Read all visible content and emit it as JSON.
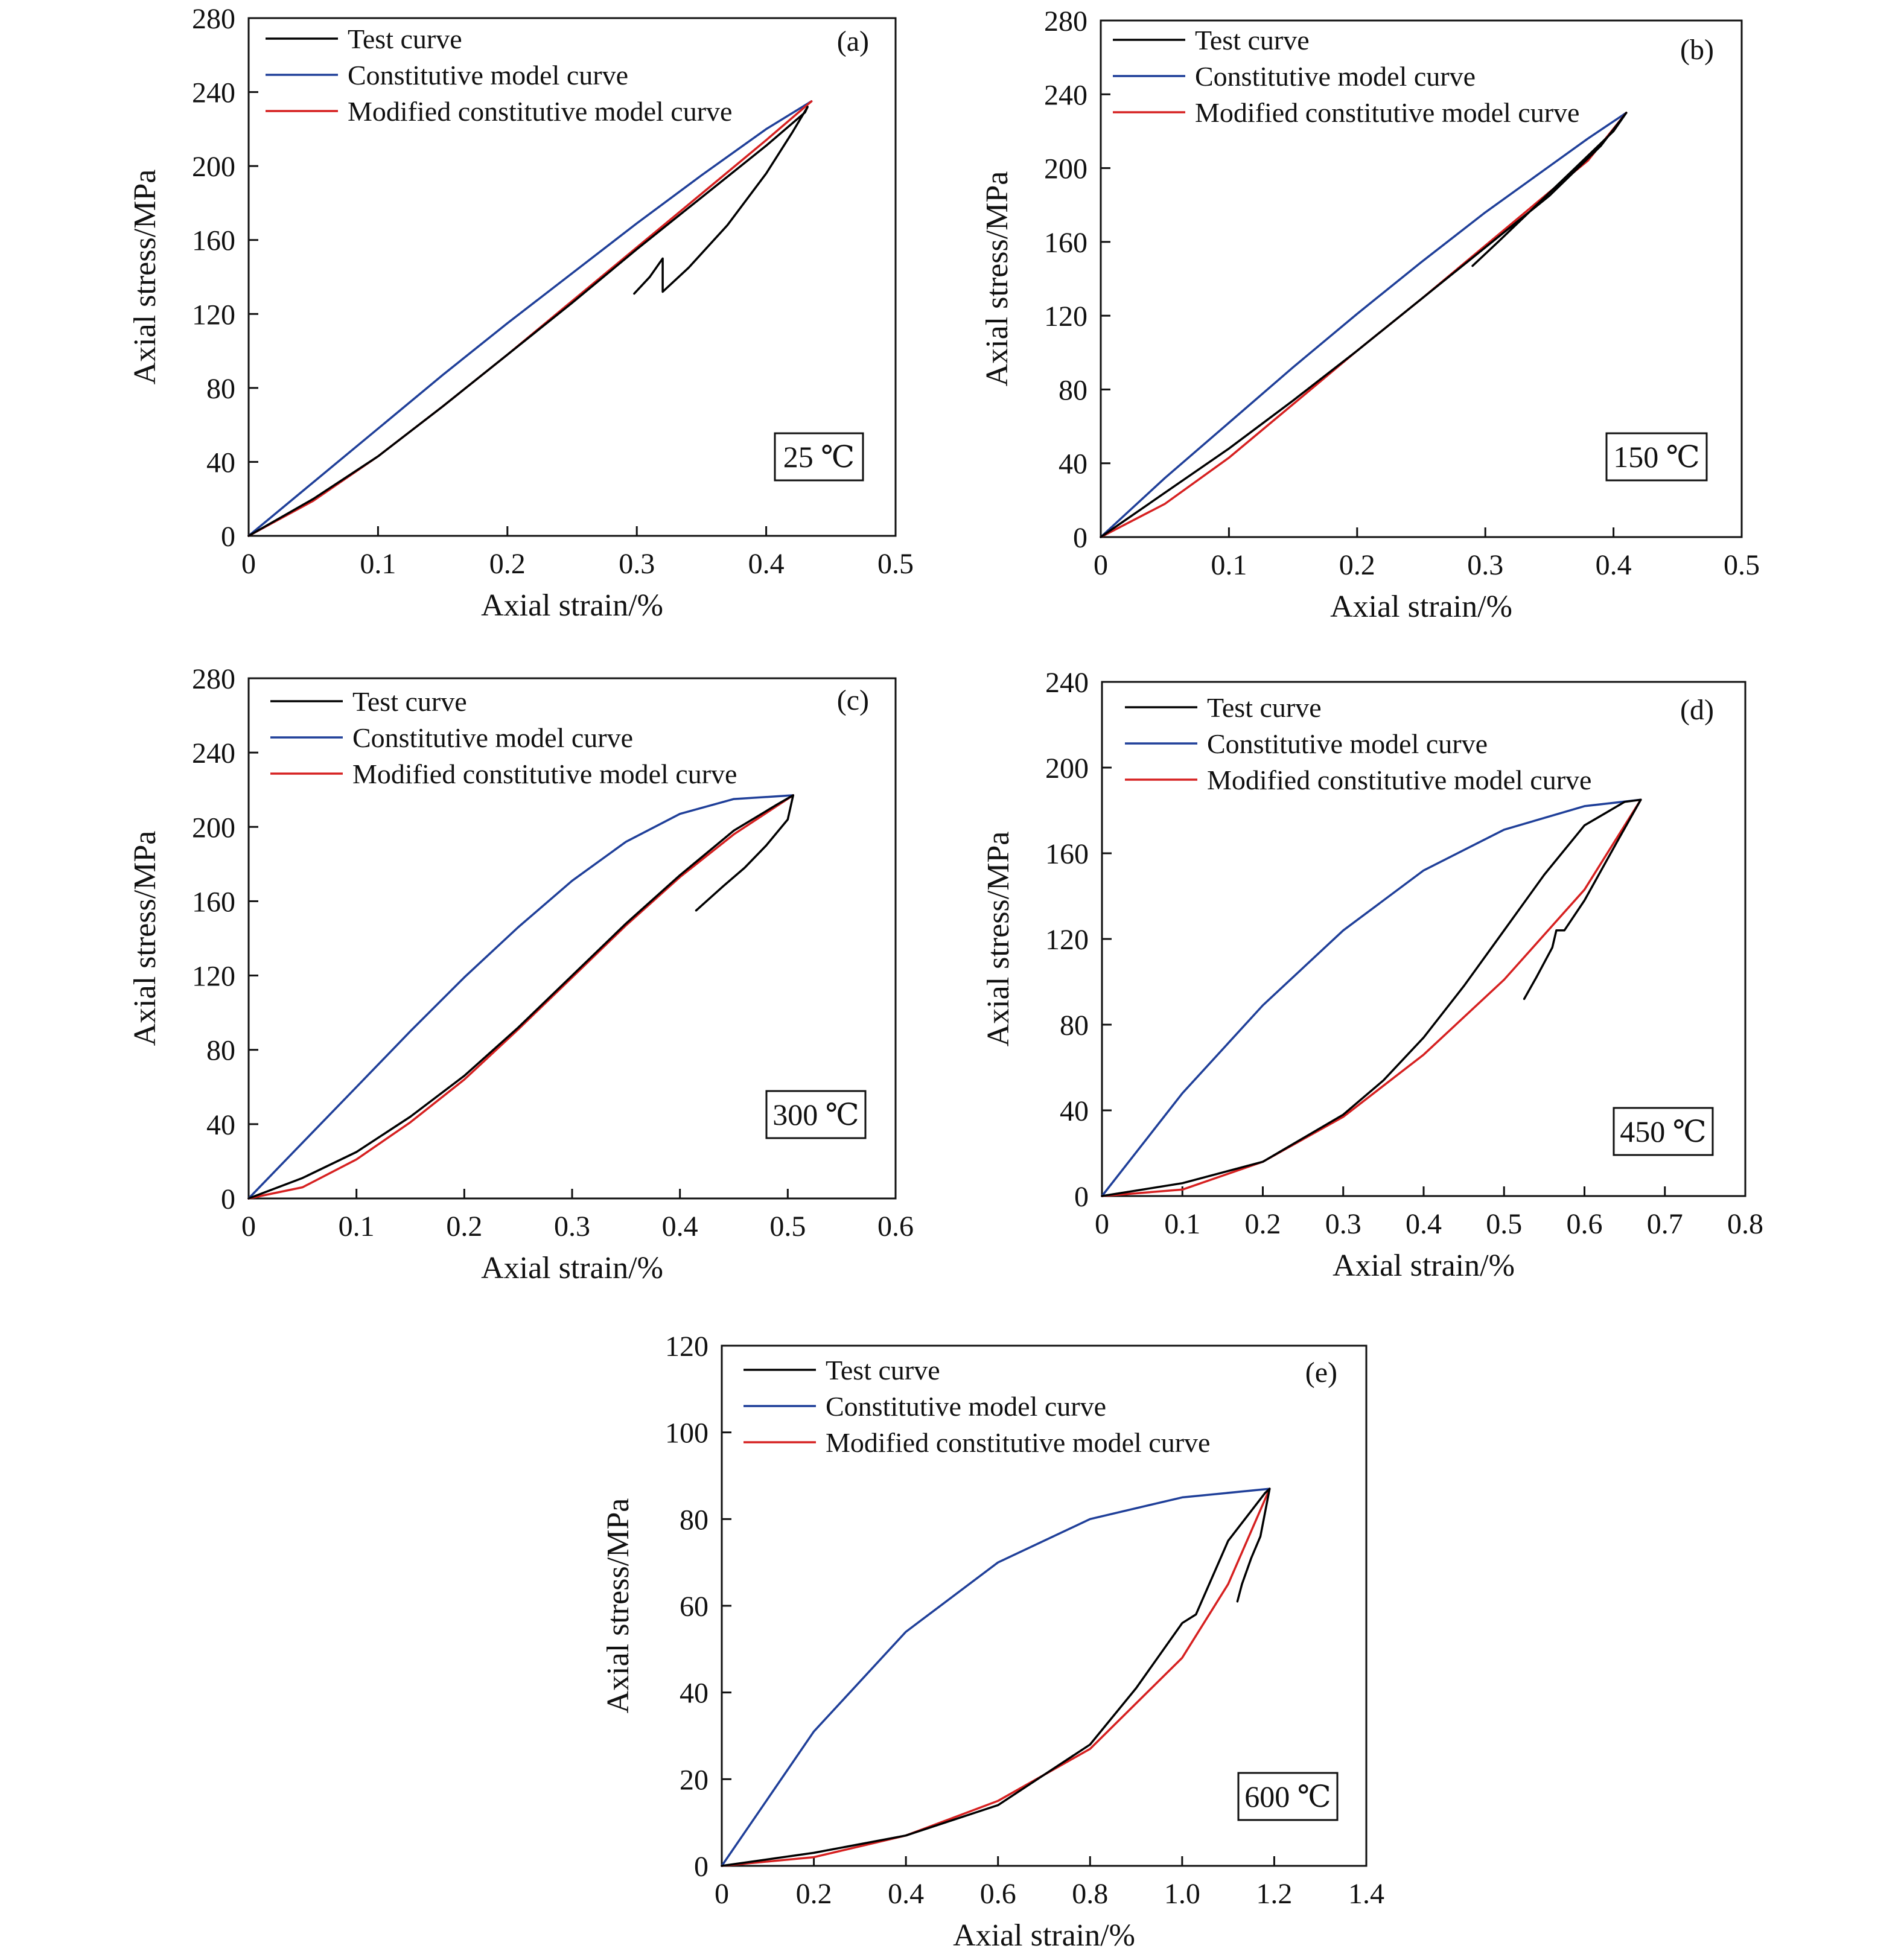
{
  "figure": {
    "colors": {
      "test": "#000000",
      "model": "#1f3f99",
      "modified": "#d62020"
    },
    "legend": [
      "Test curve",
      "Constitutive model curve",
      "Modified constitutive model curve"
    ]
  },
  "chart_data": [
    {
      "type": "line",
      "panel": "(a)",
      "temperature": "25 ℃",
      "xlabel": "Axial strain/%",
      "ylabel": "Axial stress/MPa",
      "xlim": [
        0,
        0.5
      ],
      "ylim": [
        0,
        280
      ],
      "xticks": [
        0,
        0.1,
        0.2,
        0.3,
        0.4,
        0.5
      ],
      "xtick_labels": [
        "0",
        "0.1",
        "0.2",
        "0.3",
        "0.4",
        "0.5"
      ],
      "yticks": [
        0,
        40,
        80,
        120,
        160,
        200,
        240,
        280
      ],
      "ytick_labels": [
        "0",
        "40",
        "80",
        "120",
        "160",
        "200",
        "240",
        "280"
      ],
      "series": [
        {
          "name": "Test curve",
          "color": "#000000",
          "x": [
            0,
            0.05,
            0.1,
            0.15,
            0.2,
            0.25,
            0.3,
            0.35,
            0.4,
            0.43,
            0.432,
            0.42,
            0.4,
            0.37,
            0.34,
            0.32,
            0.32,
            0.31,
            0.298
          ],
          "y": [
            0,
            20,
            43,
            70,
            98,
            126,
            155,
            183,
            211,
            229,
            232,
            218,
            196,
            168,
            145,
            132,
            150,
            140,
            131
          ]
        },
        {
          "name": "Constitutive model curve",
          "color": "#1f3f99",
          "x": [
            0,
            0.05,
            0.1,
            0.15,
            0.2,
            0.25,
            0.3,
            0.35,
            0.4,
            0.435
          ],
          "y": [
            0,
            29,
            58,
            87,
            115,
            142,
            169,
            195,
            220,
            235
          ]
        },
        {
          "name": "Modified constitutive model curve",
          "color": "#d62020",
          "x": [
            0,
            0.05,
            0.1,
            0.15,
            0.2,
            0.25,
            0.3,
            0.35,
            0.4,
            0.435
          ],
          "y": [
            0,
            19,
            43,
            70,
            98,
            127,
            156,
            185,
            214,
            235
          ]
        }
      ]
    },
    {
      "type": "line",
      "panel": "(b)",
      "temperature": "150 ℃",
      "xlabel": "Axial strain/%",
      "ylabel": "Axial stress/MPa",
      "xlim": [
        0,
        0.5
      ],
      "ylim": [
        0,
        280
      ],
      "xticks": [
        0,
        0.1,
        0.2,
        0.3,
        0.4,
        0.5
      ],
      "xtick_labels": [
        "0",
        "0.1",
        "0.2",
        "0.3",
        "0.4",
        "0.5"
      ],
      "yticks": [
        0,
        40,
        80,
        120,
        160,
        200,
        240,
        280
      ],
      "ytick_labels": [
        "0",
        "40",
        "80",
        "120",
        "160",
        "200",
        "240",
        "280"
      ],
      "series": [
        {
          "name": "Test curve",
          "color": "#000000",
          "x": [
            0,
            0.05,
            0.1,
            0.15,
            0.2,
            0.25,
            0.3,
            0.35,
            0.39,
            0.41,
            0.4,
            0.37,
            0.34,
            0.31,
            0.29
          ],
          "y": [
            0,
            24,
            48,
            74,
            101,
            129,
            157,
            185,
            212,
            230,
            220,
            200,
            180,
            160,
            147
          ]
        },
        {
          "name": "Constitutive model curve",
          "color": "#1f3f99",
          "x": [
            0,
            0.05,
            0.1,
            0.15,
            0.2,
            0.25,
            0.3,
            0.35,
            0.38,
            0.41
          ],
          "y": [
            0,
            32,
            62,
            92,
            121,
            149,
            176,
            201,
            216,
            230
          ]
        },
        {
          "name": "Modified constitutive model curve",
          "color": "#d62020",
          "x": [
            0,
            0.05,
            0.1,
            0.15,
            0.2,
            0.25,
            0.3,
            0.35,
            0.38,
            0.41
          ],
          "y": [
            0,
            18,
            43,
            72,
            101,
            129,
            158,
            187,
            204,
            230
          ]
        }
      ]
    },
    {
      "type": "line",
      "panel": "(c)",
      "temperature": "300 ℃",
      "xlabel": "Axial strain/%",
      "ylabel": "Axial stress/MPa",
      "xlim": [
        0,
        0.6
      ],
      "ylim": [
        0,
        280
      ],
      "xticks": [
        0,
        0.1,
        0.2,
        0.3,
        0.4,
        0.5,
        0.6
      ],
      "xtick_labels": [
        "0",
        "0.1",
        "0.2",
        "0.3",
        "0.4",
        "0.5",
        "0.6"
      ],
      "yticks": [
        0,
        40,
        80,
        120,
        160,
        200,
        240,
        280
      ],
      "ytick_labels": [
        "0",
        "40",
        "80",
        "120",
        "160",
        "200",
        "240",
        "280"
      ],
      "series": [
        {
          "name": "Test curve",
          "color": "#000000",
          "x": [
            0,
            0.05,
            0.1,
            0.15,
            0.2,
            0.25,
            0.3,
            0.35,
            0.4,
            0.45,
            0.49,
            0.505,
            0.5,
            0.48,
            0.46,
            0.44,
            0.415
          ],
          "y": [
            0,
            11,
            25,
            44,
            66,
            92,
            120,
            148,
            174,
            198,
            212,
            217,
            204,
            190,
            178,
            168,
            155
          ]
        },
        {
          "name": "Constitutive model curve",
          "color": "#1f3f99",
          "x": [
            0,
            0.05,
            0.1,
            0.15,
            0.2,
            0.25,
            0.3,
            0.35,
            0.4,
            0.45,
            0.505
          ],
          "y": [
            0,
            30,
            60,
            90,
            119,
            146,
            171,
            192,
            207,
            215,
            217
          ]
        },
        {
          "name": "Modified constitutive model curve",
          "color": "#d62020",
          "x": [
            0,
            0.05,
            0.1,
            0.15,
            0.2,
            0.25,
            0.3,
            0.35,
            0.4,
            0.45,
            0.505
          ],
          "y": [
            0,
            6,
            21,
            41,
            64,
            91,
            119,
            147,
            173,
            196,
            217
          ]
        }
      ]
    },
    {
      "type": "line",
      "panel": "(d)",
      "temperature": "450 ℃",
      "xlabel": "Axial strain/%",
      "ylabel": "Axial stress/MPa",
      "xlim": [
        0,
        0.8
      ],
      "ylim": [
        0,
        240
      ],
      "xticks": [
        0,
        0.1,
        0.2,
        0.3,
        0.4,
        0.5,
        0.6,
        0.7,
        0.8
      ],
      "xtick_labels": [
        "0",
        "0.1",
        "0.2",
        "0.3",
        "0.4",
        "0.5",
        "0.6",
        "0.7",
        "0.8"
      ],
      "yticks": [
        0,
        40,
        80,
        120,
        160,
        200,
        240
      ],
      "ytick_labels": [
        "0",
        "40",
        "80",
        "120",
        "160",
        "200",
        "240"
      ],
      "series": [
        {
          "name": "Test curve",
          "color": "#000000",
          "x": [
            0,
            0.1,
            0.2,
            0.3,
            0.35,
            0.4,
            0.45,
            0.5,
            0.55,
            0.6,
            0.65,
            0.67,
            0.64,
            0.6,
            0.575,
            0.565,
            0.56,
            0.54,
            0.525
          ],
          "y": [
            0,
            6,
            16,
            38,
            54,
            74,
            98,
            124,
            150,
            173,
            184,
            185,
            165,
            138,
            124,
            124,
            116,
            102,
            92
          ]
        },
        {
          "name": "Constitutive model curve",
          "color": "#1f3f99",
          "x": [
            0,
            0.1,
            0.2,
            0.3,
            0.4,
            0.5,
            0.6,
            0.67
          ],
          "y": [
            0,
            48,
            89,
            124,
            152,
            171,
            182,
            185
          ]
        },
        {
          "name": "Modified constitutive model curve",
          "color": "#d62020",
          "x": [
            0,
            0.1,
            0.2,
            0.3,
            0.4,
            0.5,
            0.6,
            0.67
          ],
          "y": [
            0,
            3,
            16,
            37,
            66,
            101,
            143,
            185
          ]
        }
      ]
    },
    {
      "type": "line",
      "panel": "(e)",
      "temperature": "600 ℃",
      "xlabel": "Axial strain/%",
      "ylabel": "Axial stress/MPa",
      "xlim": [
        0,
        1.4
      ],
      "ylim": [
        0,
        120
      ],
      "xticks": [
        0,
        0.2,
        0.4,
        0.6,
        0.8,
        1.0,
        1.2,
        1.4
      ],
      "xtick_labels": [
        "0",
        "0.2",
        "0.4",
        "0.6",
        "0.8",
        "1.0",
        "1.2",
        "1.4"
      ],
      "yticks": [
        0,
        20,
        40,
        60,
        80,
        100,
        120
      ],
      "ytick_labels": [
        "0",
        "20",
        "40",
        "60",
        "80",
        "100",
        "120"
      ],
      "series": [
        {
          "name": "Test curve",
          "color": "#000000",
          "x": [
            0,
            0.2,
            0.4,
            0.6,
            0.8,
            0.9,
            1.0,
            1.03,
            1.1,
            1.18,
            1.19,
            1.17,
            1.15,
            1.13,
            1.12
          ],
          "y": [
            0,
            3,
            7,
            14,
            28,
            41,
            56,
            58,
            75,
            86,
            87,
            76,
            71,
            65,
            61
          ]
        },
        {
          "name": "Constitutive model curve",
          "color": "#1f3f99",
          "x": [
            0,
            0.2,
            0.4,
            0.6,
            0.8,
            1.0,
            1.19
          ],
          "y": [
            0,
            31,
            54,
            70,
            80,
            85,
            87
          ]
        },
        {
          "name": "Modified constitutive model curve",
          "color": "#d62020",
          "x": [
            0,
            0.2,
            0.4,
            0.6,
            0.8,
            1.0,
            1.1,
            1.19
          ],
          "y": [
            0,
            2,
            7,
            15,
            27,
            48,
            65,
            87
          ]
        }
      ]
    }
  ]
}
